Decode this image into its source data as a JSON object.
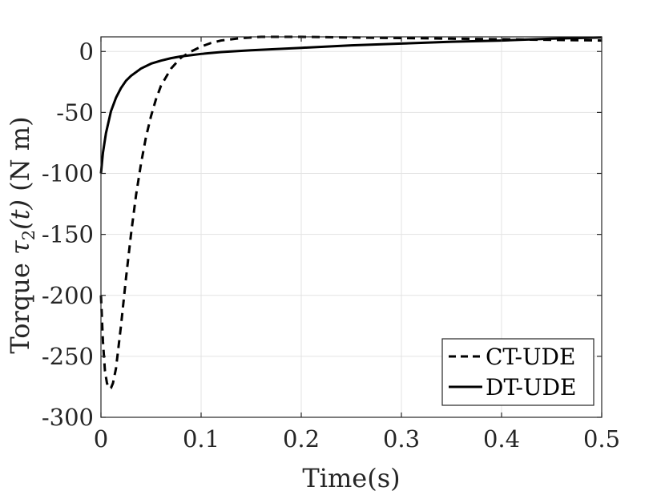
{
  "chart_data": {
    "type": "line",
    "xlabel": "Time(s)",
    "ylabel": "Torque τ₂(t) (N m)",
    "ylabel_parts": {
      "pre": "Torque ",
      "sym": "τ",
      "sub": "2",
      "arg": "(t)",
      "unit": " (N m)"
    },
    "xlim": [
      0,
      0.5
    ],
    "ylim": [
      -300,
      12
    ],
    "xticks": [
      0,
      0.1,
      0.2,
      0.3,
      0.4,
      0.5
    ],
    "xtick_labels": [
      "0",
      "0.1",
      "0.2",
      "0.3",
      "0.4",
      "0.5"
    ],
    "yticks": [
      0,
      -50,
      -100,
      -150,
      -200,
      -250,
      -300
    ],
    "ytick_labels": [
      "0",
      "-50",
      "-100",
      "-150",
      "-200",
      "-250",
      "-300"
    ],
    "grid": true,
    "legend_position": "bottom-right",
    "series": [
      {
        "name": "CT-UDE",
        "style": "dashed",
        "color": "#000000",
        "x": [
          0,
          0.002,
          0.004,
          0.006,
          0.008,
          0.01,
          0.012,
          0.015,
          0.02,
          0.025,
          0.03,
          0.035,
          0.04,
          0.045,
          0.05,
          0.055,
          0.06,
          0.07,
          0.08,
          0.09,
          0.1,
          0.11,
          0.12,
          0.14,
          0.16,
          0.18,
          0.2,
          0.25,
          0.3,
          0.35,
          0.4,
          0.45,
          0.5
        ],
        "y": [
          -200,
          -238,
          -262,
          -272,
          -276,
          -276,
          -272,
          -260,
          -225,
          -186,
          -150,
          -118,
          -92,
          -70,
          -53,
          -39,
          -28,
          -14,
          -5,
          0,
          4,
          7,
          9,
          11,
          12,
          12,
          12,
          11.5,
          11,
          10.5,
          10,
          9.5,
          9
        ]
      },
      {
        "name": "DT-UDE",
        "style": "solid",
        "color": "#000000",
        "x": [
          0,
          0.002,
          0.005,
          0.01,
          0.015,
          0.02,
          0.025,
          0.03,
          0.04,
          0.05,
          0.06,
          0.07,
          0.08,
          0.09,
          0.1,
          0.12,
          0.15,
          0.2,
          0.25,
          0.3,
          0.35,
          0.4,
          0.45,
          0.5
        ],
        "y": [
          -100,
          -83,
          -67,
          -49,
          -38,
          -30,
          -24,
          -20,
          -14,
          -10,
          -7.5,
          -5.5,
          -4,
          -3,
          -2,
          -0.5,
          1,
          3,
          5,
          6.5,
          8,
          9,
          10.5,
          11.5
        ]
      }
    ]
  }
}
